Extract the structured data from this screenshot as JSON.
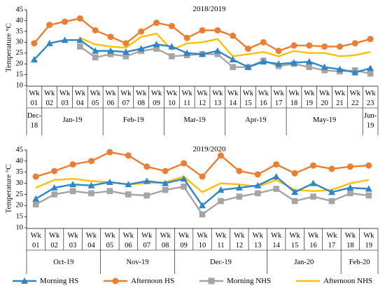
{
  "chart_data": [
    {
      "type": "line",
      "title": "2018/2019",
      "ylabel": "Temperature °C",
      "xlabel": "",
      "ylim": [
        10,
        45
      ],
      "yticks": [
        10,
        15,
        20,
        25,
        30,
        35,
        40,
        45
      ],
      "grid": false,
      "x_week_top": [
        "Wk",
        "Wk",
        "Wk",
        "Wk",
        "Wk",
        "Wk",
        "Wk",
        "Wk",
        "Wk",
        "Wk",
        "Wk",
        "Wk",
        "Wk",
        "Wk",
        "Wk",
        "Wk",
        "Wk",
        "Wk",
        "Wk",
        "Wk",
        "Wk",
        "Wk",
        "Wk"
      ],
      "x_week_num": [
        "01",
        "02",
        "03",
        "04",
        "05",
        "06",
        "07",
        "08",
        "09",
        "10",
        "11",
        "12",
        "13",
        "14",
        "15",
        "16",
        "17",
        "18",
        "19",
        "20",
        "21",
        "22",
        "23"
      ],
      "month_groups": [
        {
          "label": [
            "Dec-",
            "18"
          ],
          "span": 1
        },
        {
          "label": [
            "Jan-19"
          ],
          "span": 4
        },
        {
          "label": [
            "Feb-19"
          ],
          "span": 4
        },
        {
          "label": [
            "Mar-19"
          ],
          "span": 4
        },
        {
          "label": [
            "Apr-19"
          ],
          "span": 4
        },
        {
          "label": [
            "May-19"
          ],
          "span": 5
        },
        {
          "label": [
            "Jun-",
            "19"
          ],
          "span": 1
        }
      ],
      "series": [
        {
          "name": "Morning HS",
          "values": [
            22,
            29.5,
            31,
            31,
            26,
            26,
            25.5,
            27,
            29,
            28,
            25,
            24.5,
            26,
            22,
            18.5,
            21,
            20,
            20.5,
            21,
            18.5,
            17.5,
            16,
            18
          ]
        },
        {
          "name": "Afternoon HS",
          "values": [
            29.5,
            38,
            39.5,
            41,
            35.5,
            32.5,
            29.5,
            35,
            39,
            37.5,
            32,
            35.5,
            35.5,
            33,
            27,
            30,
            26,
            28.5,
            28.5,
            28,
            28,
            29.5,
            31.5
          ]
        },
        {
          "name": "Morning NHS",
          "values": [
            null,
            null,
            null,
            28,
            23,
            24.5,
            23.5,
            26,
            27,
            23.5,
            24,
            24.5,
            24.5,
            18.5,
            18.5,
            21.5,
            19,
            20,
            18.5,
            17,
            16.5,
            17,
            15.5
          ]
        },
        {
          "name": "Afternoon NHS",
          "values": [
            null,
            null,
            null,
            32,
            29,
            28,
            27.5,
            32.5,
            34,
            26.5,
            29.5,
            30,
            31.5,
            23.5,
            24.5,
            25.5,
            23.5,
            26,
            25,
            25,
            23.5,
            24,
            25.5
          ]
        }
      ]
    },
    {
      "type": "line",
      "title": "2019/2020",
      "ylabel": "Temperature °C",
      "xlabel": "",
      "ylim": [
        10,
        45
      ],
      "yticks": [
        10,
        15,
        20,
        25,
        30,
        35,
        40,
        45
      ],
      "grid": false,
      "x_week_top": [
        "Wk",
        "Wk",
        "Wk",
        "Wk",
        "Wk",
        "Wk",
        "Wk",
        "Wk",
        "Wk",
        "Wk",
        "Wk",
        "Wk",
        "Wk",
        "Wk",
        "Wk",
        "Wk",
        "Wk",
        "Wk",
        "Wk"
      ],
      "x_week_num": [
        "01",
        "02",
        "03",
        "04",
        "05",
        "06",
        "07",
        "08",
        "09",
        "10",
        "11",
        "12",
        "13",
        "14",
        "15",
        "16",
        "17",
        "18",
        "19"
      ],
      "month_groups": [
        {
          "label": [
            "Oct-19"
          ],
          "span": 4
        },
        {
          "label": [
            "Nov-19"
          ],
          "span": 4
        },
        {
          "label": [
            "Dec-19"
          ],
          "span": 5
        },
        {
          "label": [
            "Jan-20"
          ],
          "span": 4
        },
        {
          "label": [
            "Feb-20"
          ],
          "span": 2
        }
      ],
      "series": [
        {
          "name": "Morning HS",
          "values": [
            23,
            28,
            29.5,
            29,
            30.5,
            29.5,
            31,
            30,
            32,
            20,
            27,
            28,
            29,
            33,
            26,
            30,
            26,
            28,
            27.5
          ]
        },
        {
          "name": "Afternoon HS",
          "values": [
            33,
            35.5,
            38.5,
            40,
            44,
            42.5,
            37.5,
            35.5,
            39,
            33,
            42.5,
            35.5,
            34,
            38.5,
            34.5,
            38,
            36.5,
            37.5,
            38
          ]
        },
        {
          "name": "Morning NHS",
          "values": [
            20.5,
            25,
            26.5,
            25.5,
            26.5,
            25,
            24.5,
            27,
            28.5,
            16,
            22,
            24,
            25.5,
            27.5,
            22,
            24,
            22,
            25.5,
            24.5
          ]
        },
        {
          "name": "Afternoon NHS",
          "values": [
            28,
            31.5,
            32,
            31,
            30.5,
            29.5,
            30,
            30.5,
            33,
            26,
            30,
            29.5,
            28.5,
            31.5,
            27,
            26.5,
            27,
            30,
            31.5
          ]
        }
      ]
    }
  ],
  "legend": [
    {
      "name": "Morning HS",
      "color": "#2E86C8",
      "marker": "triangle"
    },
    {
      "name": "Afternoon HS",
      "color": "#ED7D31",
      "marker": "circle"
    },
    {
      "name": "Morning NHS",
      "color": "#A5A5A5",
      "marker": "square"
    },
    {
      "name": "Afternoon NHS",
      "color": "#FFC000",
      "marker": "none"
    }
  ]
}
